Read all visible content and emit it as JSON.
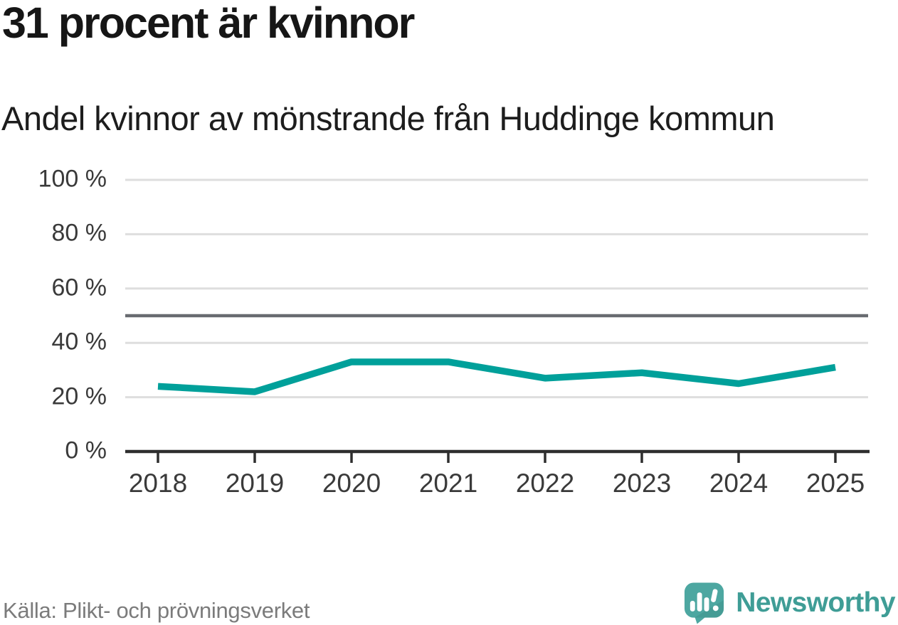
{
  "chart_data": {
    "type": "line",
    "title": "31 procent är kvinnor",
    "subtitle": "Andel kvinnor av mönstrande från Huddinge kommun",
    "source": "Källa: Plikt- och prövningsverket",
    "categories": [
      "2018",
      "2019",
      "2020",
      "2021",
      "2022",
      "2023",
      "2024",
      "2025"
    ],
    "series": [
      {
        "name": "Andel kvinnor",
        "values": [
          24,
          22,
          33,
          33,
          27,
          29,
          25,
          31
        ]
      }
    ],
    "unit": "%",
    "ylim": [
      0,
      100
    ],
    "yticks": [
      0,
      20,
      40,
      60,
      80,
      100
    ],
    "ytick_labels": [
      "0 %",
      "20 %",
      "40 %",
      "60 %",
      "80 %",
      "100 %"
    ],
    "reference_line": {
      "value": 50
    },
    "grid": "horizontal",
    "legend": "none",
    "colors": {
      "line": "#00a09a",
      "reference_line": "#686b70",
      "gridline": "#dedede",
      "axis": "#2e2e2e",
      "tick_label": "#3a3a3a",
      "title": "#161616",
      "subtitle": "#1d1d1d",
      "source": "#7b7b7b",
      "brand": "#3f9d96",
      "logo_mark": "#4da7a1",
      "logo_mark_shade": "#40968f"
    }
  },
  "branding": {
    "name": "Newsworthy"
  }
}
